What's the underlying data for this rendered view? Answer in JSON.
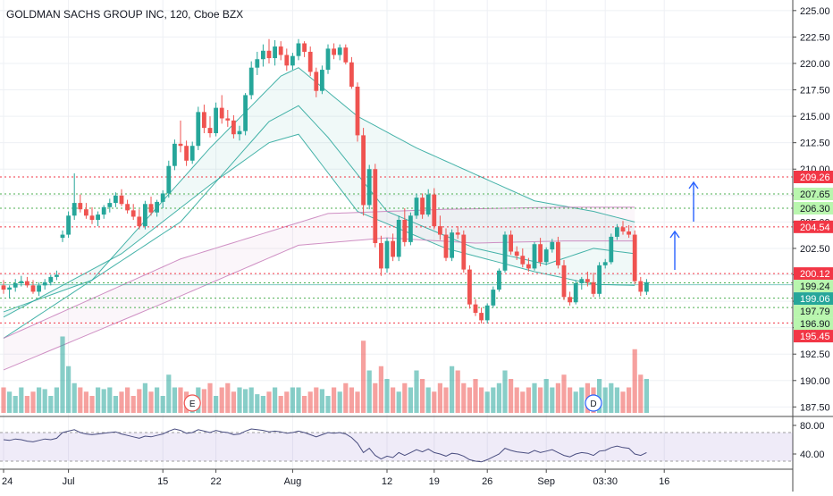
{
  "chart_data": {
    "type": "candlestick",
    "title": "GOLDMAN SACHS GROUP INC, 120, Cboe BZX",
    "price_axis": {
      "ylim": [
        186.6,
        226.0
      ],
      "tick_labels": [
        "225.00",
        "222.50",
        "220.00",
        "217.50",
        "215.00",
        "212.50",
        "210.00",
        "207.50",
        "205.00",
        "202.50",
        "200.00",
        "197.50",
        "195.00",
        "192.50",
        "190.00",
        "187.50"
      ],
      "tick_values": [
        225,
        222.5,
        220,
        217.5,
        215,
        212.5,
        210,
        207.5,
        205,
        202.5,
        200,
        197.5,
        195,
        192.5,
        190,
        187.5
      ]
    },
    "time_axis": {
      "labels": [
        "24",
        "Jul",
        "15",
        "22",
        "Aug",
        "12",
        "19",
        "26",
        "Sep",
        "03:30",
        "16"
      ],
      "bar_index": [
        0,
        11,
        27,
        36,
        49,
        65,
        73,
        82,
        92,
        102,
        112
      ]
    },
    "horizontal_levels": [
      {
        "label": "209.26",
        "value": 209.26,
        "color": "#f23645",
        "style": "dotted"
      },
      {
        "label": "207.65",
        "value": 207.65,
        "color": "#4caf50",
        "style": "dotted"
      },
      {
        "label": "206.30",
        "value": 206.3,
        "color": "#4caf50",
        "style": "dotted"
      },
      {
        "label": "204.54",
        "value": 204.54,
        "color": "#f23645",
        "style": "dotted"
      },
      {
        "label": "200.12",
        "value": 200.12,
        "color": "#f23645",
        "style": "dotted"
      },
      {
        "label": "199.24",
        "value": 199.24,
        "color": "#4caf50",
        "style": "dotted"
      },
      {
        "label": "199.06",
        "value": 199.06,
        "color": "#26a69a",
        "style": "solid"
      },
      {
        "label": "197.79",
        "value": 197.79,
        "color": "#4caf50",
        "style": "dotted"
      },
      {
        "label": "196.90",
        "value": 196.9,
        "color": "#4caf50",
        "style": "dotted"
      },
      {
        "label": "195.45",
        "value": 195.45,
        "color": "#f23645",
        "style": "dotted"
      }
    ],
    "candles": [
      [
        199,
        199.5,
        198.2,
        198.6
      ],
      [
        198.6,
        199,
        197.8,
        198.8
      ],
      [
        198.8,
        199.6,
        198.4,
        199.2
      ],
      [
        199.2,
        199.9,
        198.9,
        199.4
      ],
      [
        199.4,
        199.8,
        198.8,
        199
      ],
      [
        199,
        199.5,
        198.2,
        198.4
      ],
      [
        198.4,
        199.3,
        198,
        199
      ],
      [
        199,
        199.6,
        198.6,
        199.3
      ],
      [
        199.3,
        200,
        199,
        199.8
      ],
      [
        199.8,
        200.4,
        199.5,
        200
      ],
      [
        203.5,
        204.2,
        203.1,
        203.8
      ],
      [
        203.8,
        206,
        203.5,
        205.6
      ],
      [
        205.6,
        209.6,
        205.2,
        206.8
      ],
      [
        206.8,
        207.6,
        205.9,
        206.2
      ],
      [
        206.2,
        206.8,
        205.3,
        205.6
      ],
      [
        205.6,
        206.4,
        204.8,
        205.2
      ],
      [
        205.2,
        206,
        204.6,
        205.7
      ],
      [
        205.7,
        206.6,
        205.3,
        206.4
      ],
      [
        206.4,
        207.2,
        205.9,
        206.8
      ],
      [
        206.8,
        207.8,
        206.4,
        207.5
      ],
      [
        207.5,
        208.1,
        206.5,
        206.7
      ],
      [
        206.7,
        207.1,
        205.8,
        206.1
      ],
      [
        206.1,
        206.7,
        205.2,
        205.5
      ],
      [
        205.5,
        206.2,
        204.3,
        204.6
      ],
      [
        204.6,
        207,
        204.3,
        206.7
      ],
      [
        206.7,
        207.4,
        205.6,
        205.9
      ],
      [
        205.9,
        207.1,
        205.5,
        206.9
      ],
      [
        206.9,
        208,
        206.3,
        207.7
      ],
      [
        207.7,
        210.8,
        207.3,
        210.3
      ],
      [
        210.3,
        212.8,
        209.9,
        212.4
      ],
      [
        212.4,
        214.6,
        211.6,
        212.2
      ],
      [
        212.2,
        212.7,
        210.3,
        210.8
      ],
      [
        210.8,
        212.6,
        210.5,
        212.2
      ],
      [
        212.2,
        215.9,
        211.8,
        215.4
      ],
      [
        215.4,
        216.1,
        213.4,
        213.9
      ],
      [
        213.9,
        215,
        213,
        213.4
      ],
      [
        213.4,
        216.3,
        213.1,
        215.8
      ],
      [
        215.8,
        217,
        214.3,
        214.8
      ],
      [
        214.8,
        215.6,
        214,
        214.6
      ],
      [
        214.6,
        215.1,
        212.9,
        213.3
      ],
      [
        213.3,
        214.1,
        212.7,
        213.6
      ],
      [
        213.6,
        217.2,
        213.2,
        217
      ],
      [
        217,
        220.2,
        216.6,
        219.6
      ],
      [
        219.6,
        221.1,
        218.9,
        220.4
      ],
      [
        220.4,
        221.8,
        219.7,
        221.2
      ],
      [
        221.2,
        222.3,
        220,
        220.5
      ],
      [
        220.5,
        222.2,
        219.8,
        221.6
      ],
      [
        221.6,
        222.1,
        220.3,
        220.8
      ],
      [
        220.8,
        221.4,
        219.3,
        219.8
      ],
      [
        219.8,
        221,
        219.4,
        220.7
      ],
      [
        220.7,
        222.3,
        220.3,
        221.9
      ],
      [
        221.9,
        222.1,
        220.6,
        221.1
      ],
      [
        221.1,
        221.6,
        218.8,
        219.2
      ],
      [
        219.2,
        219.6,
        216.8,
        217.4
      ],
      [
        217.4,
        219.8,
        217.1,
        219.4
      ],
      [
        219.4,
        221.8,
        219,
        221.4
      ],
      [
        221.4,
        221.9,
        220.4,
        220.8
      ],
      [
        220.8,
        221.8,
        220.3,
        221.5
      ],
      [
        221.5,
        221.8,
        219.9,
        220.1
      ],
      [
        220.1,
        220.6,
        217.6,
        217.8
      ],
      [
        217.8,
        218.2,
        212.6,
        213.2
      ],
      [
        213.2,
        213.9,
        205.6,
        206.6
      ],
      [
        206.6,
        210.4,
        206.2,
        210
      ],
      [
        210,
        210.5,
        202.6,
        203
      ],
      [
        203,
        203.7,
        199.9,
        200.6
      ],
      [
        200.6,
        203.5,
        200.2,
        203.2
      ],
      [
        203.2,
        203.9,
        201.3,
        201.7
      ],
      [
        201.7,
        205.6,
        201.3,
        205.2
      ],
      [
        205.2,
        206.3,
        202.7,
        203.1
      ],
      [
        203.1,
        205.9,
        202.8,
        205.6
      ],
      [
        205.6,
        207.7,
        205.3,
        207.3
      ],
      [
        207.3,
        207.7,
        205.3,
        205.7
      ],
      [
        205.7,
        208.1,
        205.5,
        207.6
      ],
      [
        207.6,
        208.2,
        204.3,
        204.6
      ],
      [
        204.6,
        205.6,
        203.3,
        203.8
      ],
      [
        203.8,
        204.4,
        201.3,
        201.6
      ],
      [
        201.6,
        204.3,
        201.3,
        204
      ],
      [
        204,
        204.6,
        203.4,
        203.8
      ],
      [
        203.8,
        204.2,
        200.2,
        200.5
      ],
      [
        200.5,
        200.9,
        196.8,
        197.2
      ],
      [
        197.2,
        197.7,
        196.1,
        196.4
      ],
      [
        196.4,
        196.9,
        195.4,
        195.7
      ],
      [
        195.7,
        197.3,
        195.4,
        197.1
      ],
      [
        197.1,
        198.9,
        196.9,
        198.6
      ],
      [
        198.6,
        200.6,
        198.4,
        200.4
      ],
      [
        200.4,
        204.1,
        200.2,
        203.8
      ],
      [
        203.8,
        204.2,
        201.9,
        202.2
      ],
      [
        202.2,
        202.7,
        201.4,
        201.8
      ],
      [
        201.8,
        202.5,
        200.7,
        201
      ],
      [
        201,
        201.6,
        200.3,
        200.6
      ],
      [
        200.6,
        203.1,
        200.4,
        202.9
      ],
      [
        202.9,
        203.5,
        200.8,
        201.2
      ],
      [
        201.2,
        202.6,
        200.9,
        202.4
      ],
      [
        202.4,
        203.4,
        202.1,
        203.1
      ],
      [
        203.1,
        203.6,
        200.6,
        200.9
      ],
      [
        200.9,
        201.4,
        197.6,
        197.9
      ],
      [
        197.9,
        198.4,
        197.1,
        197.4
      ],
      [
        197.4,
        199.5,
        197.2,
        199.2
      ],
      [
        199.2,
        199.8,
        198.6,
        199.6
      ],
      [
        199.6,
        200.3,
        198.9,
        199.3
      ],
      [
        199.3,
        200.2,
        197.9,
        198.2
      ],
      [
        198.2,
        201.2,
        197.9,
        200.9
      ],
      [
        200.9,
        201.5,
        200.6,
        201.2
      ],
      [
        201.2,
        203.9,
        201,
        203.6
      ],
      [
        203.6,
        204.8,
        203.3,
        204.5
      ],
      [
        204.5,
        205.1,
        203.8,
        204.1
      ],
      [
        204.1,
        204.7,
        203.5,
        203.8
      ],
      [
        203.8,
        204.2,
        199.1,
        199.4
      ],
      [
        199.4,
        199.8,
        198,
        198.4
      ],
      [
        198.4,
        199.6,
        198.1,
        199.3
      ]
    ],
    "volume": [
      0.3,
      0.25,
      0.2,
      0.3,
      0.2,
      0.25,
      0.3,
      0.28,
      0.2,
      0.3,
      0.9,
      0.55,
      0.35,
      0.3,
      0.25,
      0.2,
      0.3,
      0.28,
      0.3,
      0.2,
      0.25,
      0.3,
      0.2,
      0.28,
      0.35,
      0.25,
      0.3,
      0.2,
      0.45,
      0.3,
      0.3,
      0.25,
      0.2,
      0.3,
      0.28,
      0.35,
      0.2,
      0.3,
      0.35,
      0.25,
      0.3,
      0.28,
      0.3,
      0.22,
      0.2,
      0.25,
      0.3,
      0.2,
      0.25,
      0.3,
      0.3,
      0.2,
      0.25,
      0.3,
      0.28,
      0.2,
      0.3,
      0.25,
      0.35,
      0.3,
      0.25,
      0.85,
      0.5,
      0.35,
      0.55,
      0.4,
      0.3,
      0.25,
      0.35,
      0.3,
      0.5,
      0.4,
      0.3,
      0.25,
      0.35,
      0.3,
      0.55,
      0.5,
      0.35,
      0.3,
      0.4,
      0.3,
      0.25,
      0.3,
      0.35,
      0.5,
      0.4,
      0.3,
      0.25,
      0.3,
      0.35,
      0.3,
      0.4,
      0.3,
      0.35,
      0.45,
      0.3,
      0.25,
      0.3,
      0.35,
      0.3,
      0.4,
      0.3,
      0.35,
      0.3,
      0.25,
      0.3,
      0.75,
      0.45,
      0.4
    ],
    "moving_averages": [
      {
        "color": "#26a69a",
        "points": [
          [
            0,
            196.0
          ],
          [
            20,
            202.0
          ],
          [
            35,
            208.5
          ],
          [
            45,
            212.5
          ],
          [
            50,
            213.3
          ],
          [
            60,
            206.0
          ],
          [
            75,
            202.5
          ],
          [
            90,
            200.3
          ],
          [
            100,
            199.1
          ],
          [
            107,
            199.0
          ]
        ]
      },
      {
        "color": "#26a69a",
        "points": [
          [
            0,
            194.0
          ],
          [
            30,
            205.0
          ],
          [
            45,
            214.5
          ],
          [
            50,
            216.0
          ],
          [
            55,
            213.0
          ],
          [
            65,
            206.0
          ],
          [
            80,
            202.5
          ],
          [
            92,
            201.0
          ],
          [
            100,
            202.5
          ],
          [
            107,
            202.0
          ]
        ]
      },
      {
        "color": "#26a69a",
        "points": [
          [
            0,
            196.5
          ],
          [
            15,
            199.5
          ],
          [
            35,
            212.0
          ],
          [
            47,
            218.8
          ],
          [
            50,
            219.6
          ],
          [
            60,
            215.0
          ],
          [
            70,
            212.0
          ],
          [
            80,
            209.5
          ],
          [
            90,
            207.0
          ],
          [
            100,
            206.0
          ],
          [
            107,
            205.0
          ]
        ]
      },
      {
        "color": "#c77dba",
        "points": [
          [
            0,
            191.0
          ],
          [
            30,
            198.0
          ],
          [
            50,
            202.8
          ],
          [
            65,
            203.5
          ],
          [
            80,
            203.0
          ],
          [
            95,
            203.2
          ],
          [
            107,
            203.2
          ]
        ]
      },
      {
        "color": "#c77dba",
        "points": [
          [
            0,
            194.0
          ],
          [
            30,
            201.5
          ],
          [
            55,
            205.8
          ],
          [
            75,
            206.2
          ],
          [
            95,
            206.4
          ],
          [
            107,
            206.4
          ]
        ]
      }
    ],
    "event_markers": [
      {
        "label": "E",
        "bar": 32
      },
      {
        "label": "D",
        "bar": 100
      }
    ],
    "rsi": {
      "tick_labels": [
        "80.00",
        "40.00"
      ],
      "tick_values": [
        80,
        40
      ],
      "band": [
        30,
        70
      ],
      "ylim": [
        20,
        90
      ],
      "values": [
        60,
        59,
        61,
        60,
        58,
        57,
        59,
        61,
        60,
        62,
        70,
        72,
        74,
        70,
        68,
        67,
        68,
        69,
        70,
        71,
        68,
        66,
        64,
        62,
        65,
        64,
        66,
        68,
        72,
        75,
        73,
        69,
        70,
        74,
        72,
        70,
        73,
        71,
        70,
        67,
        68,
        72,
        75,
        74,
        73,
        71,
        72,
        71,
        69,
        70,
        72,
        70,
        67,
        64,
        67,
        70,
        69,
        70,
        68,
        63,
        55,
        42,
        48,
        38,
        33,
        37,
        35,
        42,
        38,
        42,
        46,
        43,
        47,
        42,
        40,
        37,
        41,
        40,
        37,
        32,
        30,
        29,
        32,
        36,
        40,
        48,
        45,
        43,
        42,
        41,
        45,
        42,
        44,
        46,
        42,
        38,
        36,
        40,
        42,
        41,
        38,
        44,
        45,
        49,
        51,
        49,
        48,
        40,
        38,
        42
      ]
    }
  }
}
